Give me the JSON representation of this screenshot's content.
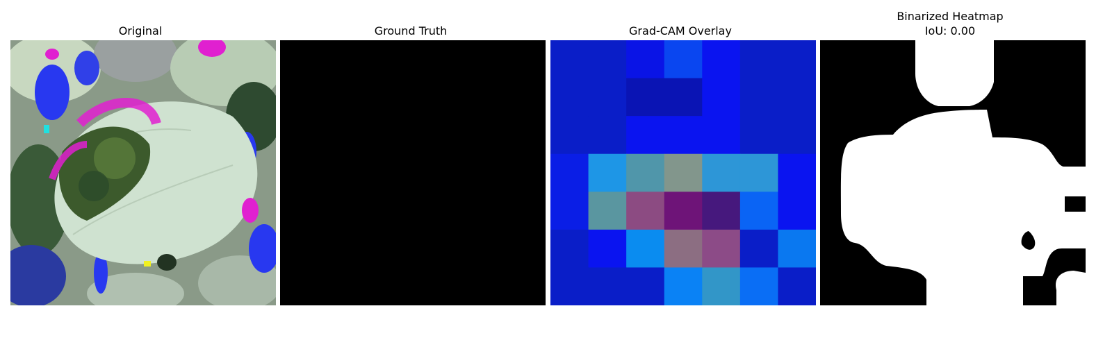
{
  "panels": [
    {
      "title": "Original"
    },
    {
      "title": "Ground Truth"
    },
    {
      "title": "Grad-CAM Overlay"
    },
    {
      "title": "Binarized Heatmap\nIoU: 0.00"
    }
  ],
  "gradcam": {
    "grid_rows": 7,
    "grid_cols": 7,
    "cells": [
      [
        "#0a1ec8",
        "#0a1ec8",
        "#0a14e6",
        "#0a46f0",
        "#0a14f0",
        "#0a1ec8",
        "#0a1ec8"
      ],
      [
        "#0a1ec8",
        "#0a1ec8",
        "#0a14b4",
        "#0a14b4",
        "#0a14f0",
        "#0a1ec8",
        "#0a1ec8"
      ],
      [
        "#0a1ec8",
        "#0a1ec8",
        "#0a14f0",
        "#0a14f0",
        "#0a14f0",
        "#0a1ec8",
        "#0a1ec8"
      ],
      [
        "#0a1ee6",
        "#1e96e6",
        "#5096aa",
        "#82968c",
        "#2d96d7",
        "#2d96d7",
        "#0a14f0"
      ],
      [
        "#0a1ee6",
        "#5a96a0",
        "#8c4b82",
        "#6e1478",
        "#46187d",
        "#0a64f5",
        "#0a14f0"
      ],
      [
        "#0a1ec8",
        "#0a14f0",
        "#0a8cf0",
        "#8c6e82",
        "#8c4b87",
        "#0a1ec8",
        "#0a78f0"
      ],
      [
        "#0a1ec8",
        "#0a1ec8",
        "#0a1ec8",
        "#0a82f5",
        "#3296c8",
        "#0a6ef5",
        "#0a1ec8"
      ]
    ]
  }
}
